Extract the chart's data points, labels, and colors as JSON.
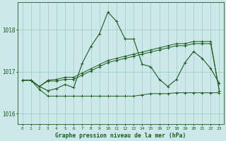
{
  "title": "Graphe pression niveau de la mer (hPa)",
  "xlabel_ticks": [
    0,
    1,
    2,
    3,
    4,
    5,
    6,
    7,
    8,
    9,
    10,
    11,
    12,
    13,
    14,
    15,
    16,
    17,
    18,
    19,
    20,
    21,
    22,
    23
  ],
  "ylim": [
    1015.75,
    1018.65
  ],
  "yticks": [
    1016,
    1017,
    1018
  ],
  "background_color": "#cce8ea",
  "grid_color": "#99ccbb",
  "line_color": "#1a5c1a",
  "line1": [
    1016.8,
    1016.8,
    1016.65,
    1016.55,
    1016.6,
    1016.7,
    1016.62,
    1017.2,
    1017.6,
    1017.9,
    1018.42,
    1018.2,
    1017.78,
    1017.78,
    1017.18,
    1017.12,
    1016.82,
    1016.65,
    1016.82,
    1017.22,
    1017.48,
    1017.32,
    1017.08,
    1016.72
  ],
  "line2": [
    1016.8,
    1016.8,
    1016.58,
    1016.42,
    1016.42,
    1016.42,
    1016.42,
    1016.42,
    1016.42,
    1016.42,
    1016.42,
    1016.42,
    1016.42,
    1016.42,
    1016.45,
    1016.48,
    1016.48,
    1016.48,
    1016.5,
    1016.5,
    1016.5,
    1016.5,
    1016.5,
    1016.5
  ],
  "line3": [
    1016.8,
    1016.8,
    1016.65,
    1016.78,
    1016.78,
    1016.82,
    1016.82,
    1016.92,
    1017.02,
    1017.12,
    1017.22,
    1017.27,
    1017.32,
    1017.37,
    1017.42,
    1017.47,
    1017.52,
    1017.57,
    1017.62,
    1017.62,
    1017.67,
    1017.67,
    1017.67,
    1016.55
  ],
  "line4": [
    1016.8,
    1016.8,
    1016.65,
    1016.8,
    1016.82,
    1016.87,
    1016.87,
    1016.97,
    1017.07,
    1017.17,
    1017.27,
    1017.32,
    1017.37,
    1017.42,
    1017.47,
    1017.52,
    1017.57,
    1017.62,
    1017.67,
    1017.67,
    1017.72,
    1017.72,
    1017.72,
    1016.55
  ]
}
